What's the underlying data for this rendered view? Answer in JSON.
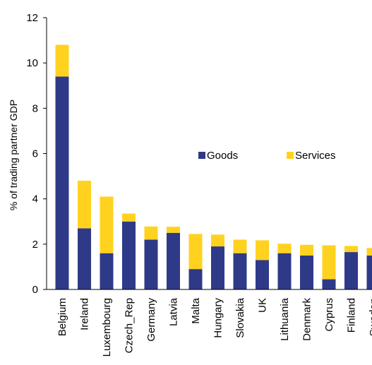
{
  "chart_data": {
    "type": "bar",
    "stacked": true,
    "title": "",
    "xlabel": "",
    "ylabel": "% of trading partner GDP",
    "ylim": [
      0,
      12
    ],
    "yticks": [
      0,
      2,
      4,
      6,
      8,
      10,
      12
    ],
    "categories": [
      "Belgium",
      "Ireland",
      "Luxembourg",
      "Czech_Rep",
      "Germany",
      "Latvia",
      "Malta",
      "Hungary",
      "Slovakia",
      "UK",
      "Lithuania",
      "Denmark",
      "Cyprus",
      "Finland",
      "Sweden"
    ],
    "series": [
      {
        "name": "Goods",
        "color": "#2e3a87",
        "values": [
          9.4,
          2.7,
          1.6,
          3.0,
          2.2,
          2.5,
          0.9,
          1.9,
          1.6,
          1.3,
          1.6,
          1.5,
          0.45,
          1.65,
          1.5
        ]
      },
      {
        "name": "Services",
        "color": "#ffd21f",
        "values": [
          1.4,
          2.1,
          2.5,
          0.35,
          0.58,
          0.27,
          1.55,
          0.52,
          0.6,
          0.87,
          0.42,
          0.47,
          1.5,
          0.27,
          0.33
        ]
      }
    ],
    "legend_position": "center-right",
    "grid": false
  }
}
